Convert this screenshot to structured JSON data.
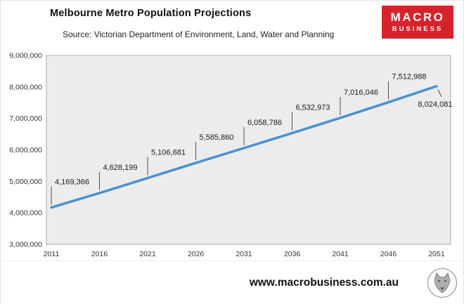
{
  "header": {
    "title": "Melbourne Metro Population Projections",
    "source": "Source: Victorian Department of Environment, Land, Water and Planning",
    "logo_line1": "MACRO",
    "logo_line2": "BUSINESS",
    "logo_bg_color": "#d8222a"
  },
  "chart_data": {
    "type": "line",
    "title": "Melbourne Metro Population Projections",
    "subtitle": "Source: Victorian Department of Environment, Land, Water and Planning",
    "categories": [
      "2011",
      "2016",
      "2021",
      "2026",
      "2031",
      "2036",
      "2041",
      "2046",
      "2051"
    ],
    "values": [
      4169366,
      4628199,
      5106681,
      5585860,
      6058786,
      6532973,
      7016046,
      7512988,
      8024081
    ],
    "labels": [
      "4,169,366",
      "4,628,199",
      "5,106,681",
      "5,585,860",
      "6,058,786",
      "6,532,973",
      "7,016,046",
      "7,512,988",
      "8,024,081"
    ],
    "xlabel": "",
    "ylabel": "",
    "ylim": [
      3000000,
      9000000
    ],
    "y_tick_step": 1000000,
    "y_tick_labels": [
      "3,000,000",
      "4,000,000",
      "5,000,000",
      "6,000,000",
      "7,000,000",
      "8,000,000",
      "9,000,000"
    ],
    "legend": "none",
    "gridlines": false,
    "line_color": "#4a90d2",
    "plot_bg": "#ececec",
    "plot_border": "#ababab"
  },
  "footer": {
    "url": "www.macrobusiness.com.au",
    "logo_icon": "wolf-engraving-icon"
  }
}
